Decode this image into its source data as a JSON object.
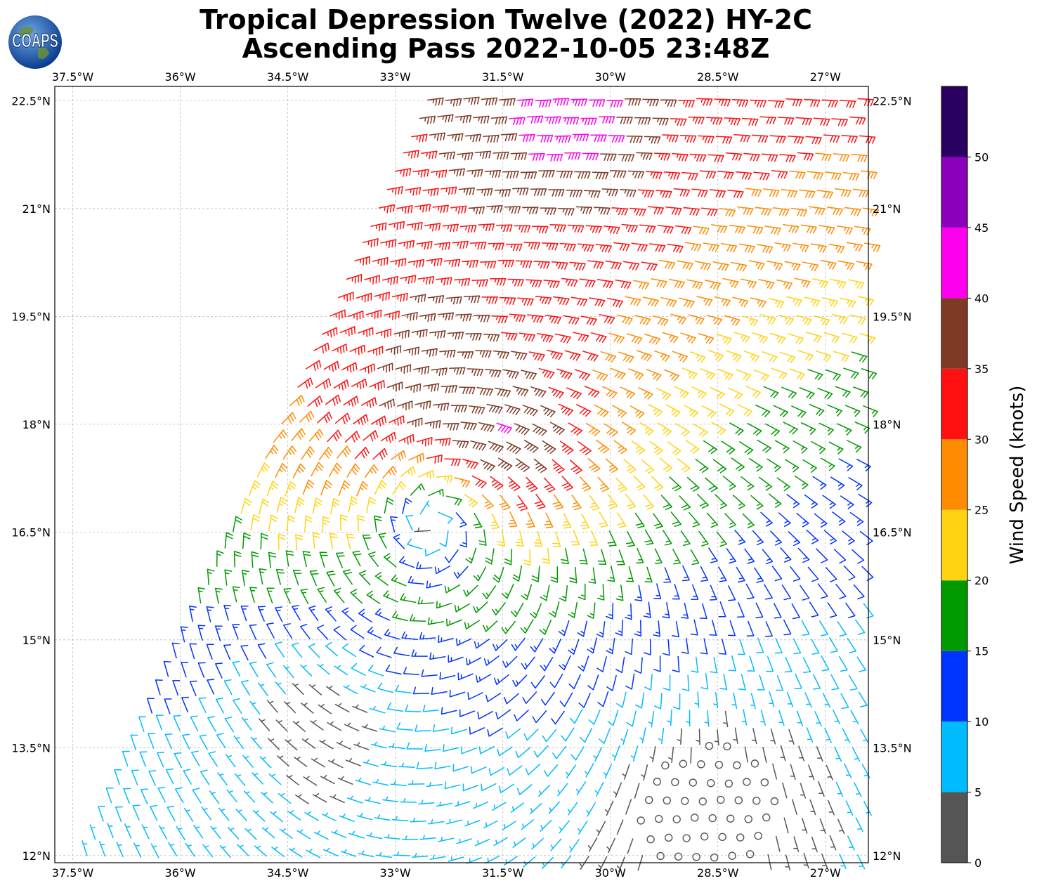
{
  "title_line1": "Tropical Depression Twelve (2022) HY-2C",
  "title_line2": "Ascending Pass 2022-10-05 23:48Z",
  "logo_text": "COAPS",
  "lon_labels": [
    "37.5°W",
    "36°W",
    "34.5°W",
    "33°W",
    "31.5°W",
    "30°W",
    "28.5°W",
    "27°W"
  ],
  "lat_labels": [
    "22.5°N",
    "21°N",
    "19.5°N",
    "18°N",
    "16.5°N",
    "15°N",
    "13.5°N",
    "12°N"
  ],
  "colorbar": {
    "label": "Wind Speed (knots)",
    "tick_labels": [
      "0",
      "5",
      "10",
      "15",
      "20",
      "25",
      "30",
      "35",
      "40",
      "45",
      "50"
    ],
    "bins": [
      {
        "min": 0,
        "max": 5,
        "color": "#555555"
      },
      {
        "min": 5,
        "max": 10,
        "color": "#00bbff"
      },
      {
        "min": 10,
        "max": 15,
        "color": "#0033ff"
      },
      {
        "min": 15,
        "max": 20,
        "color": "#009900"
      },
      {
        "min": 20,
        "max": 25,
        "color": "#ffd311"
      },
      {
        "min": 25,
        "max": 30,
        "color": "#ff8c00"
      },
      {
        "min": 30,
        "max": 35,
        "color": "#ff1111"
      },
      {
        "min": 35,
        "max": 40,
        "color": "#7f3a26"
      },
      {
        "min": 40,
        "max": 45,
        "color": "#ff00ee"
      },
      {
        "min": 45,
        "max": 50,
        "color": "#8a00bb"
      },
      {
        "min": 50,
        "max": 55,
        "color": "#2a0060"
      }
    ]
  },
  "map_extent": {
    "lon_min": -37.75,
    "lon_max": -26.4,
    "lat_min": 11.9,
    "lat_max": 22.7
  },
  "gridlines": true,
  "wind_field": {
    "center_lat": 16.9,
    "center_lon": -32.5,
    "swath_edge_lon_at_lat12": -37.3,
    "swath_edge_lon_at_lat22_6": -32.5,
    "barb_spacing_deg": 0.25,
    "calm_symbol": "circle"
  }
}
